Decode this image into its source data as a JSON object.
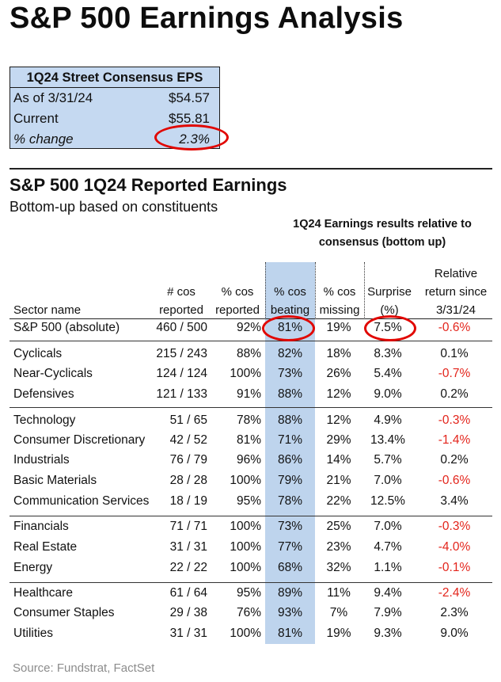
{
  "title": "S&P 500 Earnings Analysis",
  "eps_box": {
    "header": "1Q24 Street Consensus EPS",
    "rows": [
      {
        "label": "As of 3/31/24",
        "value": "$54.57"
      },
      {
        "label": "Current",
        "value": "$55.81"
      },
      {
        "label": "% change",
        "value": "2.3%"
      }
    ]
  },
  "reported": {
    "title": "S&P 500 1Q24 Reported Earnings",
    "subtitle": "Bottom-up based on constituents",
    "group_header": "1Q24 Earnings results relative to consensus (bottom up)",
    "columns": {
      "sector": "Sector name",
      "reported_1": "# cos",
      "reported_2": "reported",
      "pct_1": "% cos",
      "pct_2": "reported",
      "beat_1": "% cos",
      "beat_2": "beating",
      "miss_1": "% cos",
      "miss_2": "missing",
      "surp_1": "Surprise",
      "surp_2": "(%)",
      "rel_1": "Relative",
      "rel_2": "return since",
      "rel_3": "3/31/24"
    },
    "rows": [
      {
        "sector": "S&P 500 (absolute)",
        "reported": "460 / 500",
        "pct_reported": "92%",
        "beating": "81%",
        "missing": "19%",
        "surprise": "7.5%",
        "relative": "-0.6%"
      },
      {
        "sector": "Cyclicals",
        "reported": "215 / 243",
        "pct_reported": "88%",
        "beating": "82%",
        "missing": "18%",
        "surprise": "8.3%",
        "relative": "0.1%"
      },
      {
        "sector": "Near-Cyclicals",
        "reported": "124 / 124",
        "pct_reported": "100%",
        "beating": "73%",
        "missing": "26%",
        "surprise": "5.4%",
        "relative": "-0.7%"
      },
      {
        "sector": "Defensives",
        "reported": "121 / 133",
        "pct_reported": "91%",
        "beating": "88%",
        "missing": "12%",
        "surprise": "9.0%",
        "relative": "0.2%"
      },
      {
        "sector": "Technology",
        "reported": "51 / 65",
        "pct_reported": "78%",
        "beating": "88%",
        "missing": "12%",
        "surprise": "4.9%",
        "relative": "-0.3%"
      },
      {
        "sector": "Consumer Discretionary",
        "reported": "42 / 52",
        "pct_reported": "81%",
        "beating": "71%",
        "missing": "29%",
        "surprise": "13.4%",
        "relative": "-1.4%"
      },
      {
        "sector": "Industrials",
        "reported": "76 / 79",
        "pct_reported": "96%",
        "beating": "86%",
        "missing": "14%",
        "surprise": "5.7%",
        "relative": "0.2%"
      },
      {
        "sector": "Basic Materials",
        "reported": "28 / 28",
        "pct_reported": "100%",
        "beating": "79%",
        "missing": "21%",
        "surprise": "7.0%",
        "relative": "-0.6%"
      },
      {
        "sector": "Communication Services",
        "reported": "18 / 19",
        "pct_reported": "95%",
        "beating": "78%",
        "missing": "22%",
        "surprise": "12.5%",
        "relative": "3.4%"
      },
      {
        "sector": "Financials",
        "reported": "71 / 71",
        "pct_reported": "100%",
        "beating": "73%",
        "missing": "25%",
        "surprise": "7.0%",
        "relative": "-0.3%"
      },
      {
        "sector": "Real Estate",
        "reported": "31 / 31",
        "pct_reported": "100%",
        "beating": "77%",
        "missing": "23%",
        "surprise": "4.7%",
        "relative": "-4.0%"
      },
      {
        "sector": "Energy",
        "reported": "22 / 22",
        "pct_reported": "100%",
        "beating": "68%",
        "missing": "32%",
        "surprise": "1.1%",
        "relative": "-0.1%"
      },
      {
        "sector": "Healthcare",
        "reported": "61 / 64",
        "pct_reported": "95%",
        "beating": "89%",
        "missing": "11%",
        "surprise": "9.4%",
        "relative": "-2.4%"
      },
      {
        "sector": "Consumer Staples",
        "reported": "29 / 38",
        "pct_reported": "76%",
        "beating": "93%",
        "missing": "7%",
        "surprise": "7.9%",
        "relative": "2.3%"
      },
      {
        "sector": "Utilities",
        "reported": "31 / 31",
        "pct_reported": "100%",
        "beating": "81%",
        "missing": "19%",
        "surprise": "9.3%",
        "relative": "9.0%"
      }
    ]
  },
  "colors": {
    "highlight_column": "#bed4ed",
    "eps_box": "#c5d9f1",
    "negative": "#e3241b",
    "circle": "#e10600"
  },
  "source": "Source: Fundstrat, FactSet"
}
